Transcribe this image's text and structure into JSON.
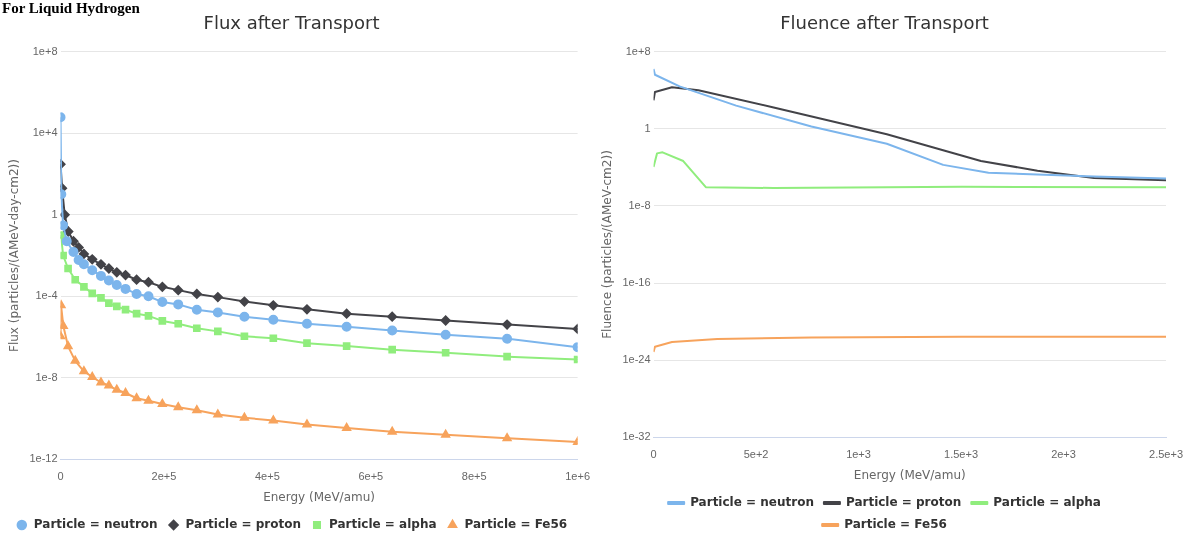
{
  "chart_data": [
    {
      "type": "line",
      "title": "Flux after Transport",
      "xlabel": "Energy (MeV/amu)",
      "ylabel": "Flux (particles/(AMeV-day-cm2))",
      "annotations": [
        "For Liquid Hydrogen"
      ],
      "log": "y",
      "grid": "y",
      "legend": "bottom",
      "xlim": [
        0,
        1000000
      ],
      "xticks": [
        0,
        {
          "value": 200000,
          "label": "2e+5"
        },
        {
          "value": 400000,
          "label": "4e+5"
        },
        {
          "value": 600000,
          "label": "6e+5"
        },
        {
          "value": 800000,
          "label": "8e+5"
        },
        {
          "value": 1000000,
          "label": "1e+6"
        }
      ],
      "ylim": [
        1e-12,
        100000000.0
      ],
      "yticks": [
        {
          "value": 1e-12,
          "label": "1e-12"
        },
        {
          "value": 1e-08,
          "label": "1e-8"
        },
        {
          "value": 0.0001,
          "label": "1e-4"
        },
        1,
        {
          "value": 10000,
          "label": "1e+4"
        },
        {
          "value": 100000000.0,
          "label": "1e+8"
        }
      ],
      "series": [
        {
          "name": "Particle = neutron",
          "color": "#7cb5ec",
          "marker": "circle",
          "x": [
            0,
            1500,
            5000,
            12000,
            25000,
            35000,
            45200,
            61300,
            78200,
            93500,
            108800,
            125700,
            147100,
            170100,
            196900,
            227600,
            263600,
            304200,
            355600,
            411500,
            476600,
            553300,
            641400,
            744800,
            863600,
            1000000
          ],
          "values": [
            60000,
            10,
            0.3,
            0.05,
            0.015,
            0.006,
            0.0037,
            0.0019,
            0.001,
            0.00059,
            0.00036,
            0.00023,
            0.00013,
            0.0001,
            5.2e-05,
            4e-05,
            2.2e-05,
            1.6e-05,
            1e-05,
            7.1e-06,
            4.5e-06,
            3.2e-06,
            2.1e-06,
            1.3e-06,
            8.3e-07,
            3.2e-07
          ]
        },
        {
          "name": "Particle = proton",
          "color": "#434348",
          "marker": "diamond",
          "x": [
            0,
            3000,
            8000,
            15000,
            25000,
            35000,
            45200,
            61300,
            78200,
            93500,
            108800,
            125700,
            147100,
            170100,
            196900,
            227600,
            263600,
            304200,
            355600,
            411500,
            476600,
            553300,
            641400,
            744800,
            863600,
            1000000
          ],
          "values": [
            300,
            20,
            1,
            0.15,
            0.05,
            0.025,
            0.012,
            0.0065,
            0.0037,
            0.0023,
            0.0015,
            0.0011,
            0.00065,
            0.00049,
            0.00029,
            0.0002,
            0.00013,
            9.1e-05,
            5.5e-05,
            3.6e-05,
            2.3e-05,
            1.4e-05,
            1e-05,
            6.5e-06,
            4.1e-06,
            2.5e-06
          ]
        },
        {
          "name": "Particle = alpha",
          "color": "#90ed7d",
          "marker": "square",
          "x": [
            1000,
            5000,
            14600,
            28400,
            45200,
            61300,
            78200,
            93500,
            108800,
            125700,
            147100,
            170100,
            196900,
            227600,
            263600,
            304200,
            355600,
            411500,
            476600,
            553300,
            641400,
            744800,
            863600,
            1000000
          ],
          "values": [
            0.1,
            0.01,
            0.0023,
            0.00065,
            0.00029,
            0.00014,
            8.3e-05,
            4.6e-05,
            3.2e-05,
            2.2e-05,
            1.4e-05,
            1.1e-05,
            6.2e-06,
            4.5e-06,
            2.7e-06,
            1.9e-06,
            1.1e-06,
            8.7e-07,
            5e-07,
            3.6e-07,
            2.4e-07,
            1.7e-07,
            1.1e-07,
            7.9e-08
          ]
        },
        {
          "name": "Particle = Fe56",
          "color": "#f7a35c",
          "marker": "triangle",
          "x": [
            0,
            1000,
            5400,
            14600,
            28400,
            45200,
            61300,
            78200,
            93500,
            108800,
            125700,
            147100,
            170100,
            196900,
            227600,
            263600,
            304200,
            355600,
            411500,
            476600,
            553300,
            641400,
            744800,
            863600,
            1000000
          ],
          "values": [
            1.1e-06,
            3.6e-05,
            3.5e-06,
            3.5e-07,
            6.8e-08,
            2.1e-08,
            1.1e-08,
            5.9e-09,
            4.2e-09,
            2.6e-09,
            1.8e-09,
            1e-09,
            7.6e-10,
            5.2e-10,
            3.6e-10,
            2.6e-10,
            1.6e-10,
            1.1e-10,
            8.1e-11,
            5.1e-11,
            3.5e-11,
            2.3e-11,
            1.6e-11,
            1.1e-11,
            7.2e-12
          ]
        }
      ]
    },
    {
      "type": "line",
      "title": "Fluence after Transport",
      "xlabel": "Energy (MeV/amu)",
      "ylabel": "Fluence (particles/(AMeV-cm2))",
      "log": "y",
      "grid": "y",
      "legend": "bottom",
      "marker": "none",
      "xlim": [
        0,
        2500
      ],
      "xticks": [
        0,
        {
          "value": 500,
          "label": "5e+2"
        },
        {
          "value": 1000,
          "label": "1e+3"
        },
        {
          "value": 1500,
          "label": "1.5e+3"
        },
        {
          "value": 2000,
          "label": "2e+3"
        },
        {
          "value": 2500,
          "label": "2.5e+3"
        }
      ],
      "ylim": [
        1e-32,
        100000000.0
      ],
      "yticks": [
        {
          "value": 1e-32,
          "label": "1e-32"
        },
        {
          "value": 1e-24,
          "label": "1e-24"
        },
        {
          "value": 1e-16,
          "label": "1e-16"
        },
        {
          "value": 1e-08,
          "label": "1e-8"
        },
        1,
        {
          "value": 100000000.0,
          "label": "1e+8"
        }
      ],
      "series": [
        {
          "name": "Particle = neutron",
          "color": "#7cb5ec",
          "x": [
            0,
            7,
            127,
            403,
            770,
            1138,
            1413,
            1634,
            1873,
            2149,
            2500
          ],
          "values": [
            1600000.0,
            400000.0,
            25000.0,
            250,
            1.7,
            0.028,
            0.00018,
            2.8e-05,
            1.8e-05,
            1.1e-05,
            7e-06
          ]
        },
        {
          "name": "Particle = proton",
          "color": "#434348",
          "x": [
            0,
            7,
            90,
            219,
            586,
            1138,
            1597,
            1873,
            2149,
            2500
          ],
          "values": [
            870,
            6600,
            20000.0,
            10000.0,
            160,
            0.27,
            0.00045,
            4.5e-05,
            8e-06,
            4.5e-06
          ]
        },
        {
          "name": "Particle = alpha",
          "color": "#90ed7d",
          "x": [
            0,
            17,
            44,
            145,
            255,
            586,
            1505,
            2500
          ],
          "values": [
            0.00011,
            0.0028,
            0.0036,
            0.00045,
            8.7e-07,
            7.2e-07,
            9.5e-07,
            8.7e-07
          ]
        },
        {
          "name": "Particle = Fe56",
          "color": "#f7a35c",
          "x": [
            0,
            7,
            90,
            311,
            770,
            1505,
            2500
          ],
          "values": [
            7.2e-24,
            2.5e-23,
            7.9e-23,
            1.6e-22,
            2.3e-22,
            2.8e-22,
            2.8e-22
          ]
        }
      ]
    }
  ]
}
